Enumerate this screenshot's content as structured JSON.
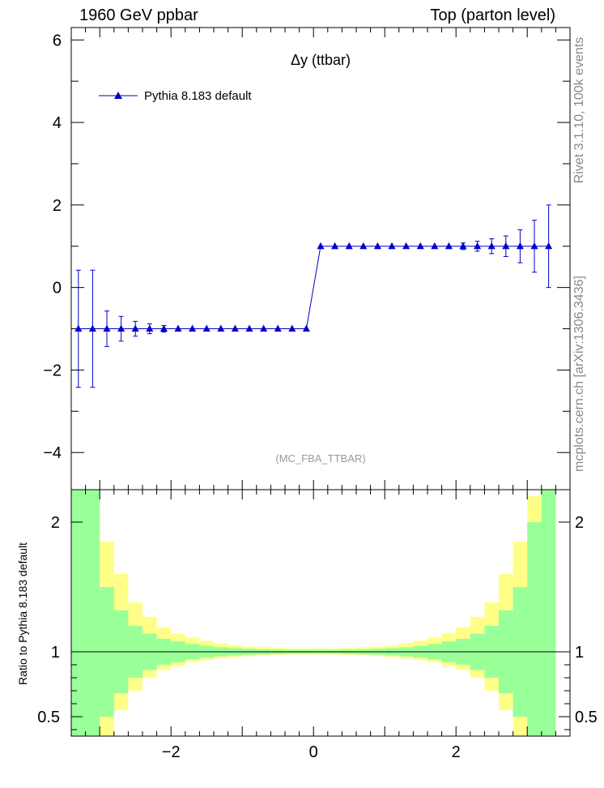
{
  "header": {
    "left": "1960 GeV ppbar",
    "right": "Top (parton level)"
  },
  "side": {
    "upper": "Rivet 3.1.10,  100k events",
    "lower": "mcplots.cern.ch [arXiv:1306.3436]"
  },
  "colors": {
    "series": "#0000cc",
    "band_inner": "#99ff99",
    "band_outer": "#ffff88",
    "watermark": "#999999"
  },
  "chart_data": [
    {
      "type": "line",
      "title": "Δy (ttbar)",
      "analysis": "(MC_FBA_TTBAR)",
      "xlabel": "",
      "ylabel": "",
      "xlim": [
        -3.4,
        3.6
      ],
      "ylim": [
        -4.9,
        6.3
      ],
      "yticks": [
        -4,
        -2,
        0,
        2,
        4,
        6
      ],
      "ytick_labels": [
        "−4",
        "−2",
        "0",
        "2",
        "4",
        "6"
      ],
      "legend": {
        "label": "Pythia 8.183 default",
        "position": "top-left"
      },
      "series": [
        {
          "name": "Pythia 8.183 default",
          "x": [
            -3.3,
            -3.1,
            -2.9,
            -2.7,
            -2.5,
            -2.3,
            -2.1,
            -1.9,
            -1.7,
            -1.5,
            -1.3,
            -1.1,
            -0.9,
            -0.7,
            -0.5,
            -0.3,
            -0.1,
            0.1,
            0.3,
            0.5,
            0.7,
            0.9,
            1.1,
            1.3,
            1.5,
            1.7,
            1.9,
            2.1,
            2.3,
            2.5,
            2.7,
            2.9,
            3.1,
            3.3
          ],
          "y": [
            -1,
            -1,
            -1,
            -1,
            -1,
            -1,
            -1,
            -1,
            -1,
            -1,
            -1,
            -1,
            -1,
            -1,
            -1,
            -1,
            -1,
            1,
            1,
            1,
            1,
            1,
            1,
            1,
            1,
            1,
            1,
            1,
            1,
            1,
            1,
            1,
            1,
            1
          ],
          "yerr": [
            1.42,
            1.42,
            0.43,
            0.3,
            0.18,
            0.12,
            0.08,
            0.05,
            0.04,
            0.03,
            0.02,
            0.02,
            0.02,
            0.02,
            0.02,
            0.02,
            0.02,
            0.02,
            0.02,
            0.02,
            0.02,
            0.02,
            0.02,
            0.02,
            0.02,
            0.02,
            0.02,
            0.08,
            0.12,
            0.18,
            0.25,
            0.4,
            0.63,
            1.0
          ]
        }
      ]
    },
    {
      "type": "area",
      "title": "",
      "ylabel": "Ratio to Pythia 8.183 default",
      "xlabel": "",
      "xlim": [
        -3.4,
        3.6
      ],
      "ylim": [
        0.35,
        2.25
      ],
      "yticks": [
        0.5,
        1,
        2
      ],
      "ytick_labels": [
        "0.5",
        "1",
        "2"
      ],
      "xticks": [
        -2,
        0,
        2
      ],
      "xtick_labels": [
        "−2",
        "0",
        "2"
      ],
      "reference_line": 1,
      "bin_edges": [
        -3.4,
        -3.2,
        -3.0,
        -2.8,
        -2.6,
        -2.4,
        -2.2,
        -2.0,
        -1.8,
        -1.6,
        -1.4,
        -1.2,
        -1.0,
        -0.8,
        -0.6,
        -0.4,
        -0.2,
        0.0,
        0.2,
        0.4,
        0.6,
        0.8,
        1.0,
        1.2,
        1.4,
        1.6,
        1.8,
        2.0,
        2.2,
        2.4,
        2.6,
        2.8,
        3.0,
        3.2,
        3.4
      ],
      "inner_band": [
        [
          0.1,
          2.3
        ],
        [
          0.1,
          2.3
        ],
        [
          0.5,
          1.5
        ],
        [
          0.68,
          1.32
        ],
        [
          0.8,
          1.2
        ],
        [
          0.86,
          1.14
        ],
        [
          0.9,
          1.1
        ],
        [
          0.92,
          1.08
        ],
        [
          0.94,
          1.06
        ],
        [
          0.955,
          1.045
        ],
        [
          0.965,
          1.035
        ],
        [
          0.972,
          1.028
        ],
        [
          0.977,
          1.023
        ],
        [
          0.98,
          1.02
        ],
        [
          0.983,
          1.017
        ],
        [
          0.985,
          1.015
        ],
        [
          0.985,
          1.015
        ],
        [
          0.985,
          1.015
        ],
        [
          0.985,
          1.015
        ],
        [
          0.983,
          1.017
        ],
        [
          0.98,
          1.02
        ],
        [
          0.977,
          1.023
        ],
        [
          0.972,
          1.028
        ],
        [
          0.965,
          1.035
        ],
        [
          0.955,
          1.045
        ],
        [
          0.94,
          1.06
        ],
        [
          0.92,
          1.08
        ],
        [
          0.9,
          1.1
        ],
        [
          0.86,
          1.14
        ],
        [
          0.8,
          1.2
        ],
        [
          0.68,
          1.32
        ],
        [
          0.5,
          1.5
        ],
        [
          0.1,
          2.0
        ],
        [
          0.1,
          2.3
        ]
      ],
      "outer_band": [
        [
          0.1,
          2.3
        ],
        [
          0.1,
          2.3
        ],
        [
          0.35,
          1.85
        ],
        [
          0.55,
          1.6
        ],
        [
          0.7,
          1.38
        ],
        [
          0.8,
          1.27
        ],
        [
          0.86,
          1.19
        ],
        [
          0.89,
          1.14
        ],
        [
          0.92,
          1.11
        ],
        [
          0.935,
          1.085
        ],
        [
          0.95,
          1.065
        ],
        [
          0.96,
          1.05
        ],
        [
          0.967,
          1.04
        ],
        [
          0.972,
          1.034
        ],
        [
          0.976,
          1.03
        ],
        [
          0.978,
          1.027
        ],
        [
          0.978,
          1.027
        ],
        [
          0.978,
          1.027
        ],
        [
          0.978,
          1.027
        ],
        [
          0.976,
          1.03
        ],
        [
          0.972,
          1.034
        ],
        [
          0.967,
          1.04
        ],
        [
          0.96,
          1.05
        ],
        [
          0.95,
          1.065
        ],
        [
          0.935,
          1.085
        ],
        [
          0.92,
          1.11
        ],
        [
          0.89,
          1.14
        ],
        [
          0.86,
          1.19
        ],
        [
          0.8,
          1.27
        ],
        [
          0.7,
          1.38
        ],
        [
          0.55,
          1.6
        ],
        [
          0.35,
          1.85
        ],
        [
          0.1,
          2.2
        ],
        [
          0.1,
          2.3
        ]
      ]
    }
  ]
}
